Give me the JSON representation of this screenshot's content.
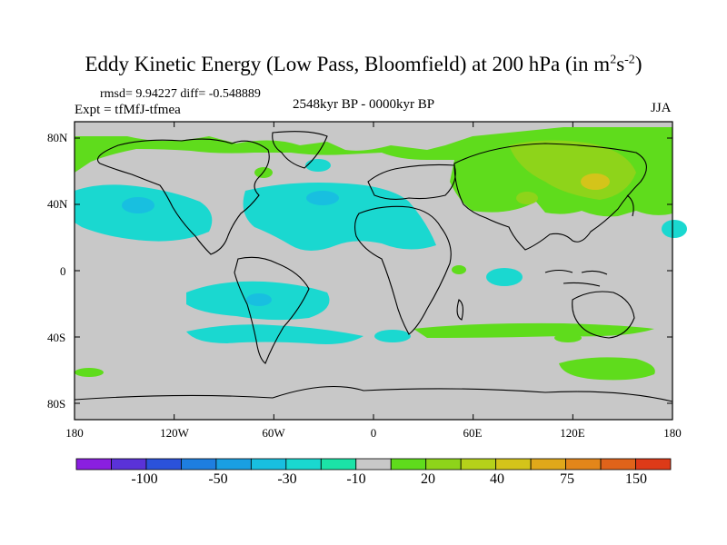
{
  "title": "Eddy Kinetic Energy (Low Pass, Bloomfield) at 200 hPa (in m",
  "title_unit_m_exp": "2",
  "title_unit_s": "s",
  "title_unit_s_exp": "-2",
  "title_close": ")",
  "stats": "rmsd= 9.94227 diff= -0.548889",
  "expt": "Expt = tfMfJ-tfmea",
  "period": "2548kyr BP - 0000kyr BP",
  "season": "JJA",
  "y_labels": [
    "80N",
    "40N",
    "0",
    "40S",
    "80S"
  ],
  "x_labels": [
    "180",
    "120W",
    "60W",
    "0",
    "60E",
    "120E",
    "180"
  ],
  "colorbar": {
    "colors": [
      "#8a1fe0",
      "#5a32d8",
      "#2b52db",
      "#1e7ee0",
      "#1a9fe2",
      "#18bfe0",
      "#1ad8d0",
      "#1be3a7",
      "#c8c8c8",
      "#5fdc1c",
      "#8ed41a",
      "#b5d11a",
      "#d4c41a",
      "#e0a81a",
      "#e3861a",
      "#e0631a",
      "#dd3a18"
    ],
    "labels": [
      "-100",
      "-50",
      "-30",
      "-10",
      "20",
      "40",
      "75",
      "150"
    ]
  },
  "colors": {
    "background": "#c8c8c8",
    "cyan_light": "#1ad8d0",
    "cyan_dark": "#18bfe0",
    "green": "#5fdc1c",
    "green_yellow": "#8ed41a",
    "yellow": "#d4c41a"
  }
}
